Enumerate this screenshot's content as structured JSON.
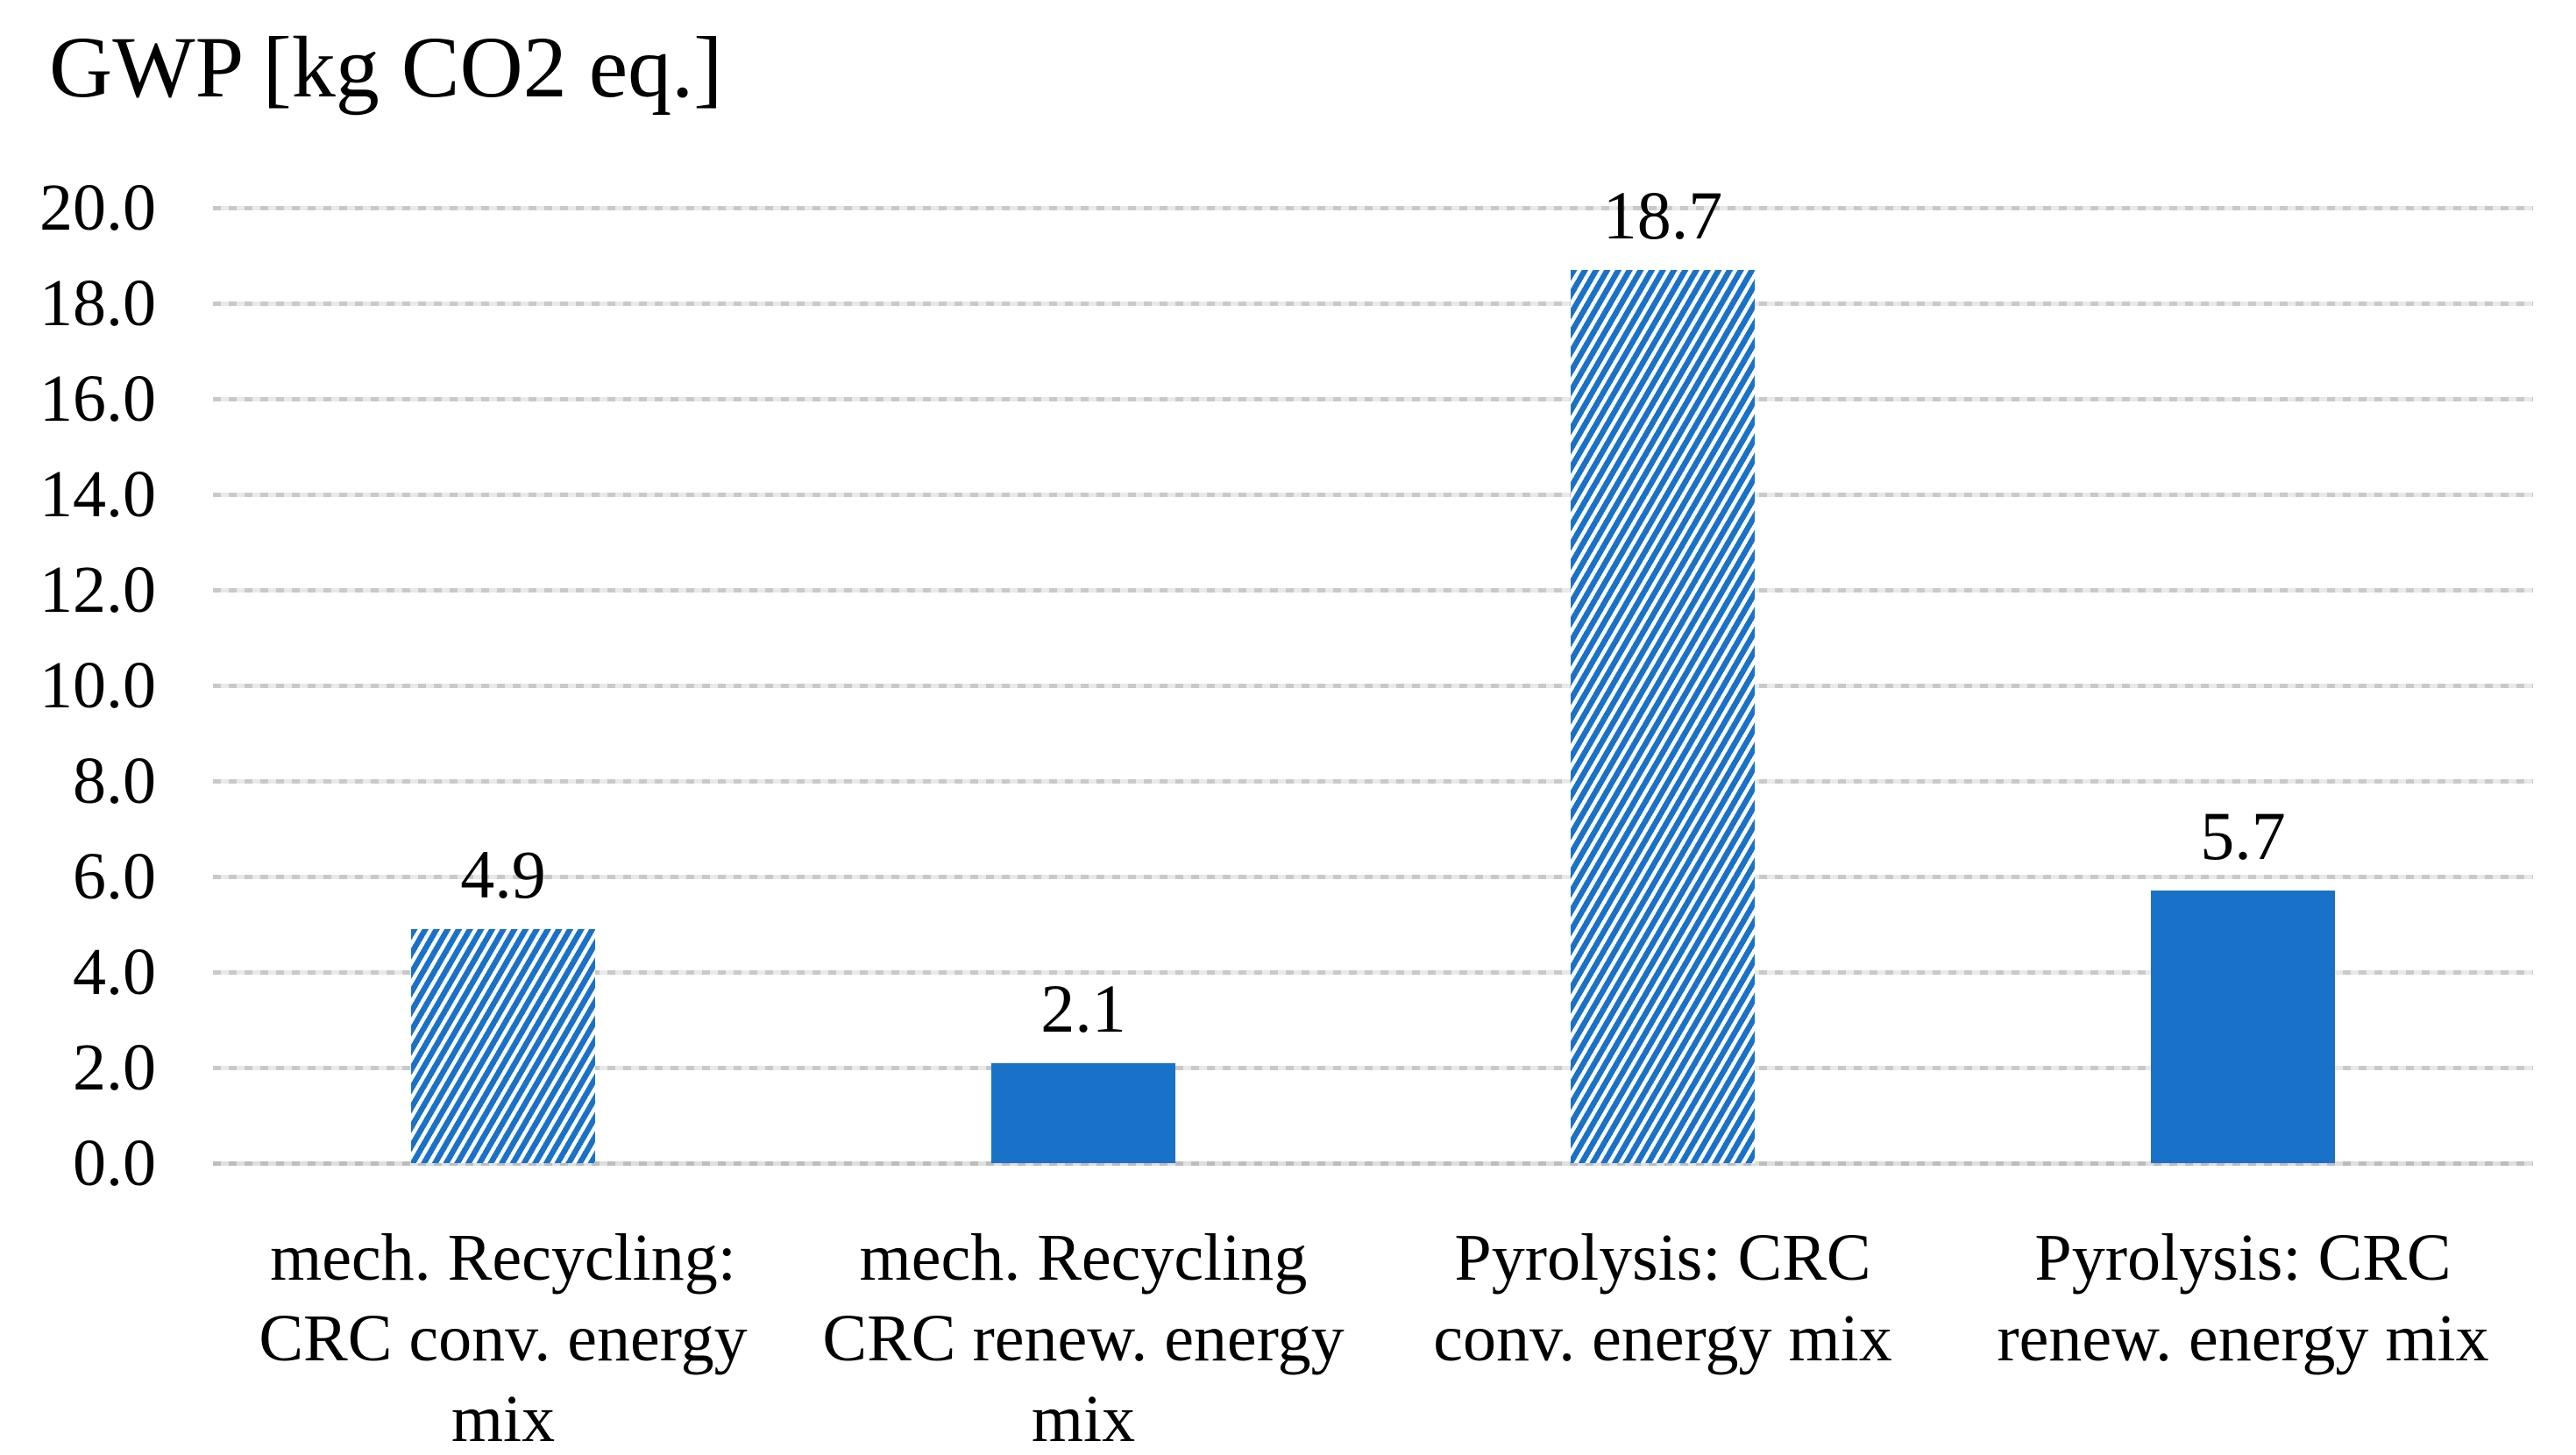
{
  "chart_data": {
    "type": "bar",
    "title": "GWP [kg CO2 eq.]",
    "xlabel": "",
    "ylabel": "",
    "categories": [
      "mech. Recycling: CRC conv. energy mix",
      "mech. Recycling CRC renew. energy mix",
      "Pyrolysis: CRC conv. energy mix",
      "Pyrolysis: CRC renew. energy mix"
    ],
    "category_lines": [
      [
        "mech. Recycling:",
        "CRC conv. energy",
        "mix"
      ],
      [
        "mech. Recycling",
        "CRC renew. energy",
        "mix"
      ],
      [
        "Pyrolysis: CRC",
        "conv. energy mix"
      ],
      [
        "Pyrolysis: CRC",
        "renew. energy mix"
      ]
    ],
    "values": [
      4.9,
      2.1,
      18.7,
      5.7
    ],
    "value_labels": [
      "4.9",
      "2.1",
      "18.7",
      "5.7"
    ],
    "bar_patterns": [
      "hatched",
      "solid",
      "hatched",
      "solid"
    ],
    "ylim": [
      0,
      20
    ],
    "ytick_step": 2.0,
    "ytick_labels": [
      "20.0",
      "18.0",
      "16.0",
      "14.0",
      "12.0",
      "10.0",
      "8.0",
      "6.0",
      "4.0",
      "2.0",
      "0.0"
    ],
    "grid": "horizontal",
    "legend": "none",
    "colors": {
      "bar_blue": "#1a72c8",
      "hatch_background": "#ffffff",
      "gridline": "#d9d9d9",
      "text": "#000000",
      "background": "#ffffff"
    }
  }
}
